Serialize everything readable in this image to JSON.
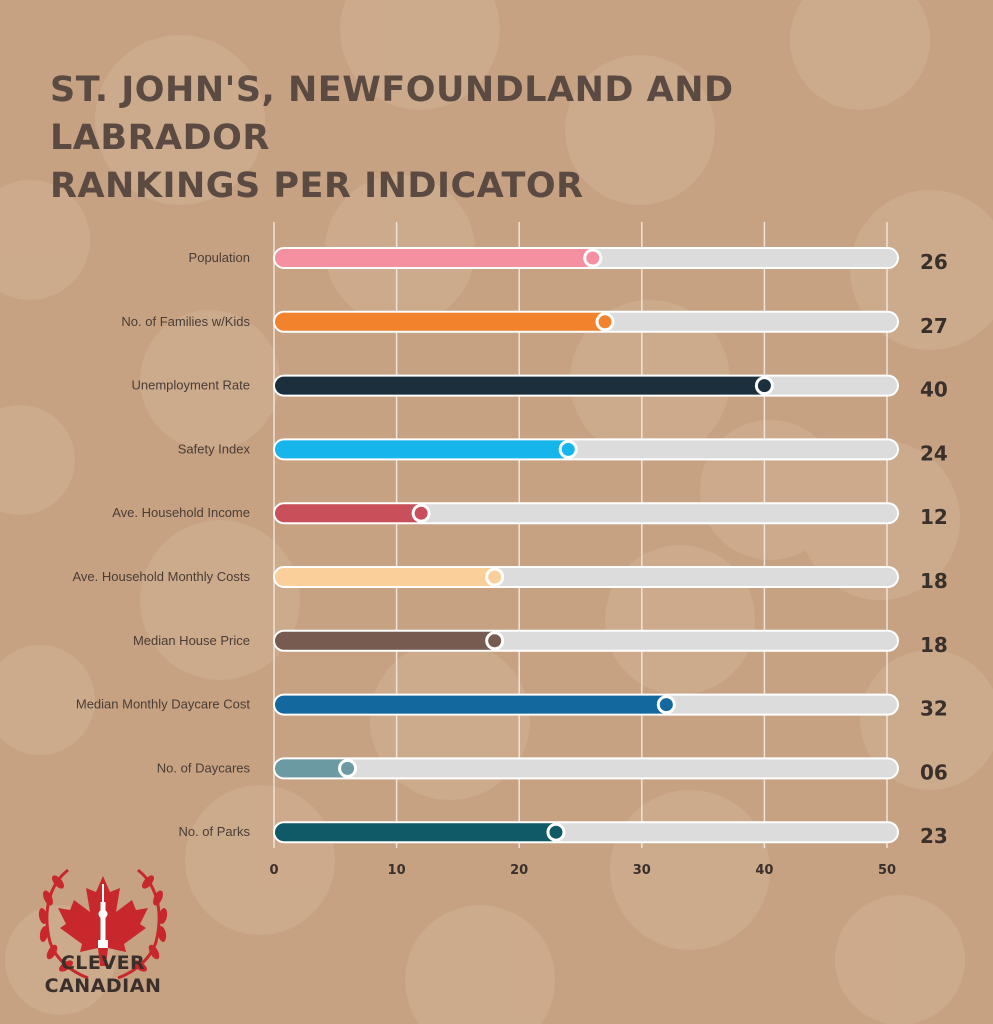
{
  "title_lines": [
    "ST. JOHN'S, NEWFOUNDLAND AND LABRADOR",
    "RANKINGS PER INDICATOR"
  ],
  "brand": {
    "line1": "CLEVER",
    "line2": "CANADIAN",
    "accent": "#c8282c"
  },
  "chart_data": {
    "type": "bar",
    "orientation": "horizontal",
    "title": "ST. JOHN'S, NEWFOUNDLAND AND LABRADOR RANKINGS PER INDICATOR",
    "xlim": [
      0,
      50
    ],
    "x_ticks": [
      "0",
      "10",
      "20",
      "30",
      "40",
      "50"
    ],
    "grid": true,
    "track_color": "#dcdcdc",
    "categories": [
      "Population",
      "No. of Families w/Kids",
      "Unemployment Rate",
      "Safety Index",
      "Ave. Household Income",
      "Ave. Household Monthly Costs",
      "Median House Price",
      "Median Monthly Daycare Cost",
      "No. of Daycares",
      "No. of Parks"
    ],
    "values": [
      26,
      27,
      40,
      24,
      12,
      18,
      18,
      32,
      6,
      23
    ],
    "value_labels": [
      "26",
      "27",
      "40",
      "24",
      "12",
      "18",
      "18",
      "32",
      "06",
      "23"
    ],
    "colors": [
      "#f4909f",
      "#f2822b",
      "#1b2f3d",
      "#16b6ec",
      "#c9505a",
      "#fbcf9a",
      "#775a50",
      "#13699d",
      "#6b9aa3",
      "#0f5a66"
    ]
  }
}
